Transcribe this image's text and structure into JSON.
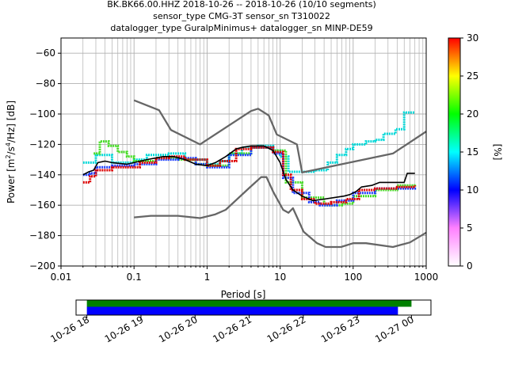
{
  "chart_data": {
    "type": "line",
    "title": [
      "BK.BK66.00.HHZ   2018-10-26 -- 2018-10-26  (10/10 segments)",
      "sensor_type CMG-3T sensor_sn T310022",
      "datalogger_type GuralpMinimus+ datalogger_sn MINP-DE59"
    ],
    "xlabel": "Period [s]",
    "ylabel_parts": [
      "Power [m",
      "2",
      "/s",
      "4",
      "/Hz] [dB]"
    ],
    "x_scale": "log",
    "xlim": [
      0.01,
      1000
    ],
    "ylim": [
      -200,
      -50
    ],
    "x_ticks": [
      0.01,
      0.1,
      1,
      10,
      100,
      1000
    ],
    "x_tick_labels": [
      "0.01",
      "0.1",
      "1",
      "10",
      "100",
      "1000"
    ],
    "y_ticks": [
      -200,
      -180,
      -160,
      -140,
      -120,
      -100,
      -80,
      -60
    ],
    "y_tick_labels": [
      "−200",
      "−180",
      "−160",
      "−140",
      "−120",
      "−100",
      "−80",
      "−60"
    ],
    "grid": true,
    "series": [
      {
        "role": "noise-model-high",
        "color": "#666666",
        "points": [
          [
            0.1,
            -91
          ],
          [
            0.22,
            -97.5
          ],
          [
            0.32,
            -110.5
          ],
          [
            0.8,
            -120
          ],
          [
            4.0,
            -98
          ],
          [
            5.0,
            -96.5
          ],
          [
            7.0,
            -101
          ],
          [
            9.0,
            -113.5
          ],
          [
            17.0,
            -120
          ],
          [
            20.0,
            -138.5
          ],
          [
            350,
            -126
          ],
          [
            1000,
            -111.5
          ]
        ]
      },
      {
        "role": "noise-model-low",
        "color": "#666666",
        "points": [
          [
            0.1,
            -168
          ],
          [
            0.17,
            -167
          ],
          [
            0.4,
            -167
          ],
          [
            0.8,
            -168.5
          ],
          [
            1.3,
            -166
          ],
          [
            1.8,
            -163
          ],
          [
            3.8,
            -148.5
          ],
          [
            5.5,
            -141.5
          ],
          [
            6.5,
            -141.5
          ],
          [
            8.0,
            -151
          ],
          [
            11.0,
            -163
          ],
          [
            13.0,
            -165
          ],
          [
            15.0,
            -162
          ],
          [
            21.0,
            -177.5
          ],
          [
            32.0,
            -185
          ],
          [
            42.0,
            -187.5
          ],
          [
            68.0,
            -187.5
          ],
          [
            100,
            -185
          ],
          [
            150,
            -185
          ],
          [
            350,
            -187.5
          ],
          [
            600,
            -184.5
          ],
          [
            1000,
            -178
          ]
        ]
      },
      {
        "role": "mode",
        "color": "#000000",
        "points": [
          [
            0.02,
            -140
          ],
          [
            0.024,
            -138
          ],
          [
            0.028,
            -137
          ],
          [
            0.032,
            -132
          ],
          [
            0.04,
            -131
          ],
          [
            0.05,
            -132
          ],
          [
            0.08,
            -133
          ],
          [
            0.1,
            -132
          ],
          [
            0.15,
            -130
          ],
          [
            0.25,
            -128
          ],
          [
            0.35,
            -128
          ],
          [
            0.5,
            -130
          ],
          [
            0.7,
            -133
          ],
          [
            1.0,
            -134
          ],
          [
            1.3,
            -132
          ],
          [
            1.8,
            -128
          ],
          [
            2.5,
            -123
          ],
          [
            3.0,
            -122
          ],
          [
            4.0,
            -121
          ],
          [
            6.0,
            -121
          ],
          [
            8.0,
            -124
          ],
          [
            10.0,
            -132
          ],
          [
            12.0,
            -143
          ],
          [
            15.0,
            -150
          ],
          [
            20.0,
            -154
          ],
          [
            28.0,
            -157
          ],
          [
            40.0,
            -156
          ],
          [
            55.0,
            -155
          ],
          [
            75.0,
            -154
          ],
          [
            90.0,
            -153
          ],
          [
            110,
            -151
          ],
          [
            130,
            -148
          ],
          [
            180,
            -147
          ],
          [
            230,
            -145
          ],
          [
            380,
            -145
          ],
          [
            500,
            -145
          ],
          [
            550,
            -139
          ],
          [
            700,
            -139
          ]
        ]
      },
      {
        "role": "psd-track-cyan",
        "color": "#00d8d8",
        "points": [
          [
            0.02,
            -132
          ],
          [
            0.03,
            -127
          ],
          [
            0.05,
            -132
          ],
          [
            0.1,
            -130
          ],
          [
            0.15,
            -127
          ],
          [
            0.3,
            -126
          ],
          [
            0.5,
            -130
          ],
          [
            1.0,
            -133
          ],
          [
            1.5,
            -131
          ],
          [
            2.0,
            -126
          ],
          [
            3.0,
            -122
          ],
          [
            5.0,
            -121
          ],
          [
            8.0,
            -124
          ],
          [
            10.0,
            -128
          ],
          [
            13.0,
            -138
          ],
          [
            20.0,
            -138
          ],
          [
            30.0,
            -137
          ],
          [
            45.0,
            -132
          ],
          [
            60.0,
            -127
          ],
          [
            80.0,
            -123
          ],
          [
            100,
            -120
          ],
          [
            150,
            -118
          ],
          [
            200,
            -117
          ],
          [
            260,
            -113
          ],
          [
            380,
            -110
          ],
          [
            500,
            -99
          ],
          [
            700,
            -99
          ]
        ]
      },
      {
        "role": "psd-track-green",
        "color": "#44dd22",
        "points": [
          [
            0.028,
            -126
          ],
          [
            0.034,
            -118
          ],
          [
            0.045,
            -121
          ],
          [
            0.06,
            -125
          ],
          [
            0.08,
            -128
          ],
          [
            0.1,
            -131
          ],
          [
            0.2,
            -129
          ],
          [
            0.4,
            -130
          ],
          [
            0.7,
            -133
          ],
          [
            1.0,
            -134
          ],
          [
            2.0,
            -126
          ],
          [
            4.0,
            -122
          ],
          [
            8.0,
            -124
          ],
          [
            12.0,
            -145
          ],
          [
            20.0,
            -155
          ],
          [
            40.0,
            -160
          ],
          [
            70.0,
            -159
          ],
          [
            100,
            -154
          ],
          [
            200,
            -150
          ],
          [
            400,
            -147
          ],
          [
            700,
            -146
          ]
        ]
      },
      {
        "role": "psd-track-red",
        "color": "#dd0000",
        "points": [
          [
            0.02,
            -145
          ],
          [
            0.025,
            -141
          ],
          [
            0.03,
            -137
          ],
          [
            0.05,
            -135
          ],
          [
            0.08,
            -135
          ],
          [
            0.12,
            -132
          ],
          [
            0.2,
            -129
          ],
          [
            0.3,
            -128
          ],
          [
            0.5,
            -130
          ],
          [
            1.0,
            -134
          ],
          [
            1.5,
            -131
          ],
          [
            2.5,
            -123
          ],
          [
            4.0,
            -122
          ],
          [
            8.0,
            -125
          ],
          [
            11.0,
            -140
          ],
          [
            14.0,
            -150
          ],
          [
            20.0,
            -156
          ],
          [
            30.0,
            -159
          ],
          [
            50.0,
            -158
          ],
          [
            80.0,
            -156
          ],
          [
            120,
            -150
          ],
          [
            200,
            -149
          ],
          [
            400,
            -148
          ],
          [
            700,
            -147
          ]
        ]
      },
      {
        "role": "psd-track-blue",
        "color": "#1a3cff",
        "points": [
          [
            0.02,
            -140
          ],
          [
            0.025,
            -139
          ],
          [
            0.03,
            -135
          ],
          [
            0.05,
            -134
          ],
          [
            0.08,
            -134
          ],
          [
            0.1,
            -133
          ],
          [
            0.2,
            -130
          ],
          [
            0.4,
            -129
          ],
          [
            0.7,
            -133
          ],
          [
            1.0,
            -135
          ],
          [
            2.0,
            -127
          ],
          [
            4.0,
            -122
          ],
          [
            8.0,
            -126
          ],
          [
            11.0,
            -142
          ],
          [
            15.0,
            -152
          ],
          [
            25.0,
            -158
          ],
          [
            35.0,
            -160
          ],
          [
            60.0,
            -157
          ],
          [
            100,
            -152
          ],
          [
            200,
            -149
          ],
          [
            400,
            -149
          ],
          [
            700,
            -148
          ]
        ]
      }
    ],
    "colorbar": {
      "label": "[%]",
      "range": [
        0,
        30
      ],
      "ticks": [
        0,
        5,
        10,
        15,
        20,
        25,
        30
      ],
      "tick_labels": [
        "0",
        "5",
        "10",
        "15",
        "20",
        "25",
        "30"
      ],
      "colors": [
        "#ffffff",
        "#ff80ff",
        "#0000ff",
        "#00ffff",
        "#00ff00",
        "#ffff00",
        "#ff0000"
      ]
    },
    "timeline": {
      "range": [
        "2018-10-26 17:50",
        "2018-10-27 00:20"
      ],
      "tick_labels": [
        "10-26 18",
        "10-26 19",
        "10-26 20",
        "10-26 21",
        "10-26 22",
        "10-26 23",
        "10-27 00"
      ],
      "tick_hours": [
        18,
        19,
        20,
        21,
        22,
        23,
        24
      ],
      "start_hour": 17.8,
      "end_hour": 24.36,
      "bars": [
        {
          "color": "#008000",
          "start_hour": 18.0,
          "end_hour": 24.0
        },
        {
          "color": "#0000ff",
          "start_hour": 18.0,
          "end_hour": 23.75
        }
      ]
    }
  }
}
